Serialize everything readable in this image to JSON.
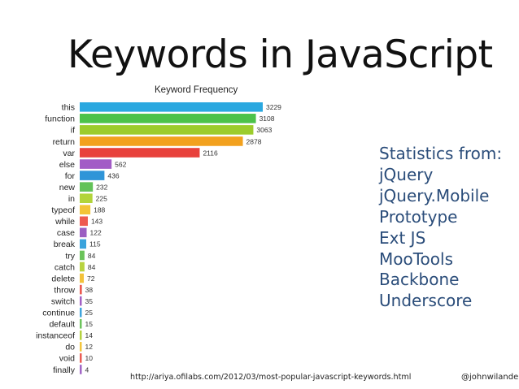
{
  "slide": {
    "title": "Keywords in JavaScript",
    "stats_heading": "Statistics from:",
    "sources": [
      "jQuery",
      "jQuery.Mobile",
      "Prototype",
      "Ext JS",
      "MooTools",
      "Backbone",
      "Underscore"
    ],
    "url": "http://ariya.ofilabs.com/2012/03/most-popular-javascript-keywords.html",
    "author": "@johnwilander"
  },
  "chart_data": {
    "type": "bar",
    "orientation": "horizontal",
    "title": "Keyword Frequency",
    "categories": [
      "this",
      "function",
      "if",
      "return",
      "var",
      "else",
      "for",
      "new",
      "in",
      "typeof",
      "while",
      "case",
      "break",
      "try",
      "catch",
      "delete",
      "throw",
      "switch",
      "continue",
      "default",
      "instanceof",
      "do",
      "void",
      "finally"
    ],
    "values": [
      3229,
      3108,
      3063,
      2878,
      2116,
      562,
      436,
      232,
      225,
      188,
      143,
      122,
      115,
      84,
      84,
      72,
      38,
      35,
      25,
      15,
      14,
      12,
      10,
      4
    ],
    "colors": [
      "#2aa8e0",
      "#4cc24a",
      "#9ccc2c",
      "#f2a11e",
      "#e8413c",
      "#a25bc6",
      "#2f95d8",
      "#63c25a",
      "#b2d43a",
      "#f3c437",
      "#ee5a4f",
      "#9b5fc2",
      "#3aa3dc",
      "#6bc35a",
      "#b8d33f",
      "#f3c23a",
      "#ec5a50",
      "#a260c4",
      "#40a5dd",
      "#6dc45d",
      "#b4d23f",
      "#f3c53d",
      "#eb5d55",
      "#a166c6"
    ],
    "data_labels": true
  }
}
